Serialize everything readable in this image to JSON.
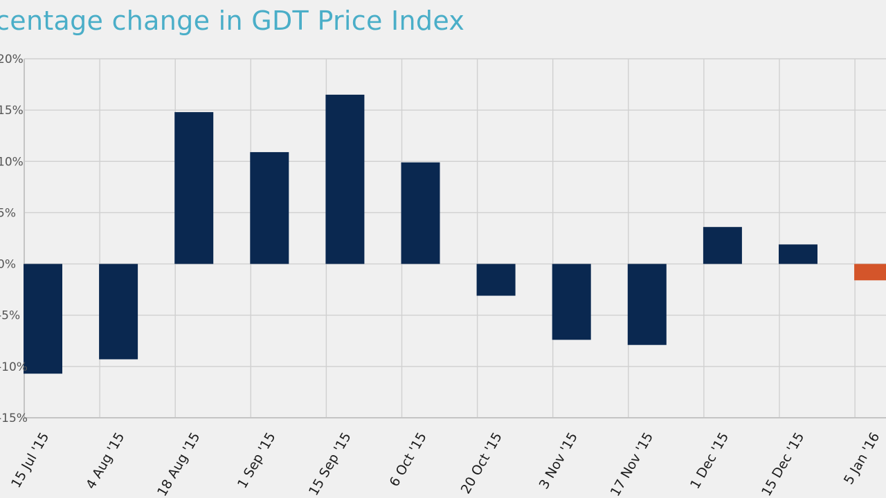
{
  "title": "rcentage change in GDT Price Index",
  "chart_data": {
    "type": "bar",
    "title": "rcentage change in GDT Price Index",
    "categories": [
      "15 Jul '15",
      "4 Aug '15",
      "18 Aug '15",
      "1 Sep '15",
      "15 Sep '15",
      "6 Oct '15",
      "20 Oct '15",
      "3 Nov '15",
      "17 Nov '15",
      "1 Dec '15",
      "15 Dec '15",
      "5 Jan '16"
    ],
    "values": [
      -10.7,
      -9.3,
      14.8,
      10.9,
      16.5,
      9.9,
      -3.1,
      -7.4,
      -7.9,
      3.6,
      1.9,
      -1.6
    ],
    "ylim": [
      -15,
      20
    ],
    "y_tick_values": [
      20,
      15,
      10,
      5,
      0,
      -5,
      -10,
      -15
    ],
    "y_tick_suffix": "%",
    "grid": true,
    "colors": {
      "positive": "#0a2850",
      "negative": "#0a2850",
      "latest": "#d4552a",
      "title": "#4aaec8"
    }
  }
}
